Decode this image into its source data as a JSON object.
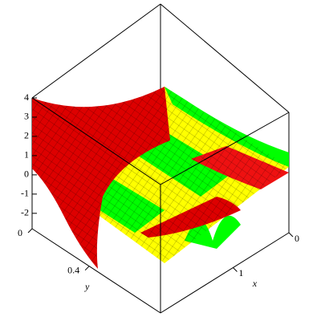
{
  "chart_data": {
    "type": "surface",
    "xlabel": "x",
    "ylabel": "y",
    "xlim": [
      0,
      2.3
    ],
    "xticks": [
      0,
      1
    ],
    "ylim": [
      0,
      0.9
    ],
    "yticks": [
      0,
      0.4
    ],
    "zlim": [
      -2.8,
      4
    ],
    "zticks": [
      4,
      3,
      2,
      1,
      0,
      -1,
      -2
    ],
    "colors": [
      "#ff0000",
      "#ffff00",
      "#00ff00"
    ]
  }
}
